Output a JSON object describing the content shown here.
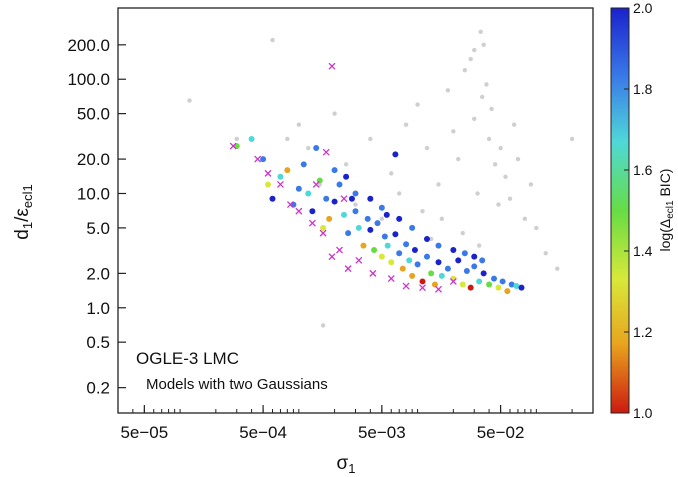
{
  "chart_data": {
    "type": "scatter",
    "title": "",
    "xlabel_main": "σ",
    "xlabel_sub": "1",
    "ylabel_main": "d",
    "ylabel_sub1": "1",
    "ylabel_slash": "/ε",
    "ylabel_sub2": "ecl1",
    "x_scale": "log",
    "y_scale": "log",
    "xlim": [
      3e-05,
      0.3
    ],
    "ylim": [
      0.12,
      420
    ],
    "x_ticks": [
      {
        "value": 5e-05,
        "label": "5e−05"
      },
      {
        "value": 0.0005,
        "label": "5e−04"
      },
      {
        "value": 0.005,
        "label": "5e−03"
      },
      {
        "value": 0.05,
        "label": "5e−02"
      }
    ],
    "y_ticks": [
      {
        "value": 0.2,
        "label": "0.2"
      },
      {
        "value": 0.5,
        "label": "0.5"
      },
      {
        "value": 1.0,
        "label": "1.0"
      },
      {
        "value": 2.0,
        "label": "2.0"
      },
      {
        "value": 5.0,
        "label": "5.0"
      },
      {
        "value": 10.0,
        "label": "10.0"
      },
      {
        "value": 20.0,
        "label": "20.0"
      },
      {
        "value": 50.0,
        "label": "50.0"
      },
      {
        "value": 100.0,
        "label": "100.0"
      },
      {
        "value": 200.0,
        "label": "200.0"
      }
    ],
    "annotation_line1": "OGLE-3 LMC",
    "annotation_line2": "Models with two Gaussians",
    "grid": false,
    "colorbar": {
      "label_main": "log(Δ",
      "label_sub": "ecl1",
      "label_tail": " BIC)",
      "range": [
        1.0,
        2.0
      ],
      "ticks": [
        {
          "value": 1.0,
          "label": "1.0"
        },
        {
          "value": 1.2,
          "label": "1.2"
        },
        {
          "value": 1.4,
          "label": "1.4"
        },
        {
          "value": 1.6,
          "label": "1.6"
        },
        {
          "value": 1.8,
          "label": "1.8"
        },
        {
          "value": 2.0,
          "label": "2.0"
        }
      ],
      "colors": [
        "#cc1a10",
        "#e8a41e",
        "#d8e83a",
        "#66dd44",
        "#4fd8d8",
        "#3a7ae8",
        "#1a22cc"
      ]
    },
    "series": [
      {
        "style": "grey-points",
        "color": "#a8a8a8",
        "points": [
          [
            0.0016,
            0.7
          ],
          [
            0.0025,
            18
          ],
          [
            0.004,
            30
          ],
          [
            0.006,
            15
          ],
          [
            0.008,
            40
          ],
          [
            0.01,
            60
          ],
          [
            0.012,
            25
          ],
          [
            0.015,
            12
          ],
          [
            0.018,
            80
          ],
          [
            0.02,
            35
          ],
          [
            0.022,
            20
          ],
          [
            0.025,
            120
          ],
          [
            0.028,
            150
          ],
          [
            0.03,
            45
          ],
          [
            0.032,
            10
          ],
          [
            0.035,
            70
          ],
          [
            0.038,
            90
          ],
          [
            0.04,
            30
          ],
          [
            0.042,
            55
          ],
          [
            0.045,
            18
          ],
          [
            0.048,
            8
          ],
          [
            0.05,
            25
          ],
          [
            0.055,
            14
          ],
          [
            0.06,
            9
          ],
          [
            0.065,
            40
          ],
          [
            0.07,
            20
          ],
          [
            0.08,
            6
          ],
          [
            0.09,
            12
          ],
          [
            0.1,
            5
          ],
          [
            0.12,
            3
          ],
          [
            0.003,
            8
          ],
          [
            0.005,
            6
          ],
          [
            0.007,
            10
          ],
          [
            0.009,
            5
          ],
          [
            0.011,
            7
          ],
          [
            0.013,
            4
          ],
          [
            0.001,
            40
          ],
          [
            0.0012,
            25
          ],
          [
            0.002,
            50
          ],
          [
            0.0015,
            12
          ],
          [
            0.016,
            6
          ],
          [
            0.024,
            4.5
          ],
          [
            0.033,
            3.5
          ],
          [
            0.036,
            200
          ],
          [
            0.034,
            260
          ],
          [
            0.03,
            180
          ],
          [
            0.00012,
            65
          ],
          [
            0.0008,
            30
          ],
          [
            0.0006,
            220
          ],
          [
            0.0003,
            30
          ],
          [
            0.15,
            2.2
          ],
          [
            0.2,
            30
          ]
        ]
      },
      {
        "style": "colored-dots",
        "points": [
          [
            0.0003,
            26,
            1.5
          ],
          [
            0.0004,
            30,
            1.6
          ],
          [
            0.0005,
            20,
            1.9
          ],
          [
            0.00055,
            12,
            1.3
          ],
          [
            0.0006,
            9,
            1.95
          ],
          [
            0.0007,
            14,
            1.7
          ],
          [
            0.0008,
            16,
            1.2
          ],
          [
            0.0009,
            8,
            1.9
          ],
          [
            0.001,
            11,
            1.8
          ],
          [
            0.0011,
            18,
            1.9
          ],
          [
            0.0012,
            10,
            1.6
          ],
          [
            0.0013,
            7,
            1.95
          ],
          [
            0.0014,
            25,
            1.85
          ],
          [
            0.0015,
            13,
            1.5
          ],
          [
            0.0016,
            5,
            1.4
          ],
          [
            0.0017,
            9,
            1.9
          ],
          [
            0.0018,
            6,
            1.1
          ],
          [
            0.002,
            8.5,
            1.95
          ],
          [
            0.0022,
            12,
            1.8
          ],
          [
            0.0024,
            6.5,
            1.7
          ],
          [
            0.0026,
            4.5,
            1.9
          ],
          [
            0.0028,
            9,
            1.95
          ],
          [
            0.003,
            7,
            1.75
          ],
          [
            0.0032,
            5,
            1.6
          ],
          [
            0.0035,
            3.5,
            1.2
          ],
          [
            0.0038,
            6,
            1.9
          ],
          [
            0.004,
            4.8,
            1.95
          ],
          [
            0.0043,
            3.2,
            1.5
          ],
          [
            0.0046,
            5.5,
            1.85
          ],
          [
            0.005,
            2.8,
            1.3
          ],
          [
            0.0053,
            4.2,
            1.9
          ],
          [
            0.0056,
            3.5,
            1.7
          ],
          [
            0.006,
            2.5,
            1.4
          ],
          [
            0.0065,
            4.4,
            1.95
          ],
          [
            0.007,
            3.0,
            1.8
          ],
          [
            0.0075,
            2.2,
            1.1
          ],
          [
            0.008,
            3.6,
            1.9
          ],
          [
            0.0085,
            2.6,
            1.6
          ],
          [
            0.009,
            1.9,
            1.2
          ],
          [
            0.0095,
            3.2,
            1.95
          ],
          [
            0.01,
            2.4,
            1.75
          ],
          [
            0.011,
            1.7,
            1.0
          ],
          [
            0.012,
            2.8,
            1.9
          ],
          [
            0.013,
            2.0,
            1.5
          ],
          [
            0.014,
            1.6,
            1.1
          ],
          [
            0.015,
            2.5,
            1.95
          ],
          [
            0.016,
            1.9,
            1.7
          ],
          [
            0.018,
            2.2,
            1.9
          ],
          [
            0.02,
            1.8,
            1.4
          ],
          [
            0.022,
            2.6,
            1.95
          ],
          [
            0.024,
            1.6,
            1.3
          ],
          [
            0.026,
            2.1,
            1.85
          ],
          [
            0.028,
            1.5,
            1.0
          ],
          [
            0.03,
            2.3,
            1.9
          ],
          [
            0.033,
            1.7,
            1.6
          ],
          [
            0.036,
            2.0,
            1.95
          ],
          [
            0.04,
            1.6,
            1.5
          ],
          [
            0.044,
            1.8,
            1.9
          ],
          [
            0.048,
            1.5,
            1.3
          ],
          [
            0.052,
            1.7,
            1.8
          ],
          [
            0.057,
            1.4,
            1.2
          ],
          [
            0.062,
            1.6,
            1.9
          ],
          [
            0.068,
            1.55,
            1.7
          ],
          [
            0.075,
            1.5,
            1.95
          ],
          [
            0.007,
            6,
            1.95
          ],
          [
            0.009,
            5,
            1.9
          ],
          [
            0.012,
            4,
            1.95
          ],
          [
            0.015,
            3.5,
            1.85
          ],
          [
            0.02,
            3.2,
            1.95
          ],
          [
            0.025,
            3.0,
            1.9
          ],
          [
            0.03,
            2.8,
            1.95
          ],
          [
            0.035,
            2.6,
            1.85
          ],
          [
            0.004,
            9,
            1.95
          ],
          [
            0.005,
            7.5,
            1.9
          ],
          [
            0.0055,
            6.5,
            1.95
          ],
          [
            0.003,
            10,
            1.9
          ],
          [
            0.0025,
            14,
            1.95
          ],
          [
            0.002,
            16,
            1.85
          ],
          [
            0.0065,
            22,
            1.95
          ]
        ]
      },
      {
        "style": "magenta-crosses",
        "color": "#cc33cc",
        "points": [
          [
            0.00028,
            26
          ],
          [
            0.00045,
            20
          ],
          [
            0.00055,
            15
          ],
          [
            0.0007,
            12
          ],
          [
            0.00085,
            8
          ],
          [
            0.001,
            7
          ],
          [
            0.0013,
            5.5
          ],
          [
            0.0016,
            4.5
          ],
          [
            0.0019,
            2.8
          ],
          [
            0.0022,
            3.2
          ],
          [
            0.0026,
            2.2
          ],
          [
            0.0032,
            2.6
          ],
          [
            0.0042,
            2.0
          ],
          [
            0.006,
            1.8
          ],
          [
            0.008,
            1.55
          ],
          [
            0.011,
            1.5
          ],
          [
            0.015,
            1.45
          ],
          [
            0.02,
            1.7
          ],
          [
            0.0019,
            130
          ],
          [
            0.0017,
            23
          ],
          [
            0.0024,
            9
          ],
          [
            0.0014,
            12
          ]
        ]
      }
    ]
  }
}
